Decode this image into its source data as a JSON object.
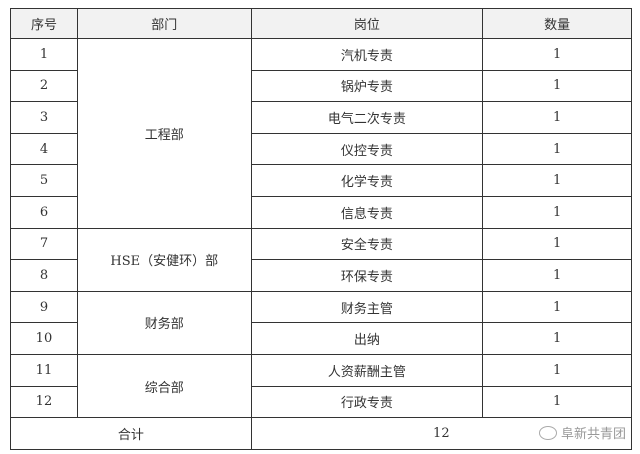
{
  "headers": [
    "序号",
    "部门",
    "岗位",
    "数量"
  ],
  "rows": [
    {
      "no": "1",
      "position": "汽机专责",
      "count": "1"
    },
    {
      "no": "2",
      "position": "锅炉专责",
      "count": "1"
    },
    {
      "no": "3",
      "position": "电气二次专责",
      "count": "1"
    },
    {
      "no": "4",
      "position": "仪控专责",
      "count": "1"
    },
    {
      "no": "5",
      "position": "化学专责",
      "count": "1"
    },
    {
      "no": "6",
      "position": "信息专责",
      "count": "1"
    },
    {
      "no": "7",
      "position": "安全专责",
      "count": "1"
    },
    {
      "no": "8",
      "position": "环保专责",
      "count": "1"
    },
    {
      "no": "9",
      "position": "财务主管",
      "count": "1"
    },
    {
      "no": "10",
      "position": "出纳",
      "count": "1"
    },
    {
      "no": "11",
      "position": "人资薪酬主管",
      "count": "1"
    },
    {
      "no": "12",
      "position": "行政专责",
      "count": "1"
    }
  ],
  "departments": [
    "工程部",
    "HSE（安健环）部",
    "财务部",
    "综合部"
  ],
  "total": {
    "label": "合计",
    "value": "12"
  },
  "watermark": "阜新共青团"
}
